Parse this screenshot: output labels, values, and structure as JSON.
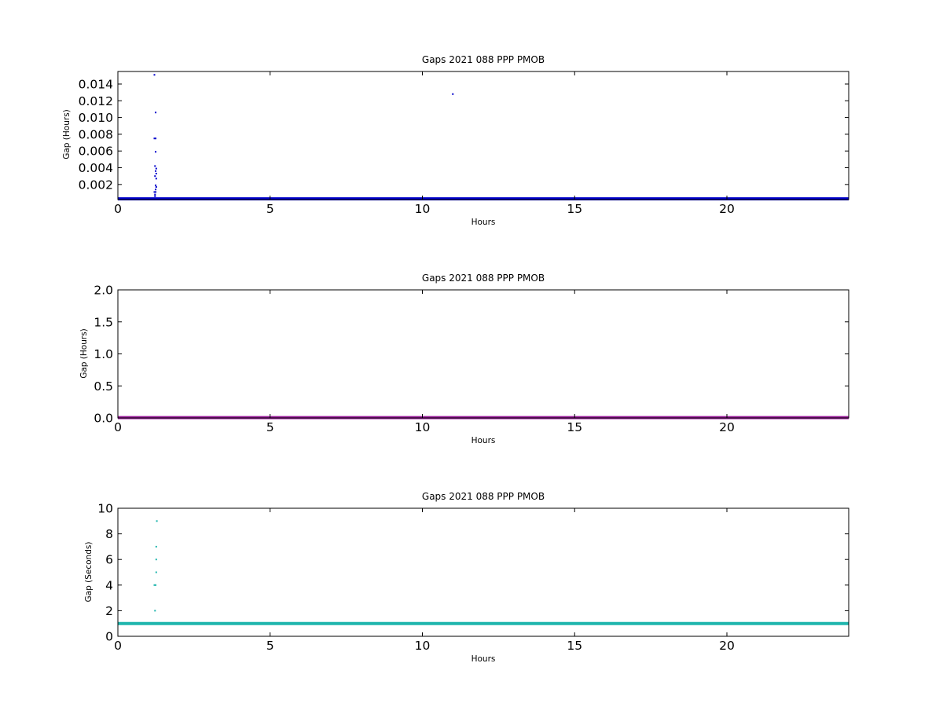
{
  "chart_data": [
    {
      "type": "scatter",
      "title": "Gaps 2021 088 PPP  PMOB",
      "xlabel": "Hours",
      "ylabel": "Gap (Hours)",
      "xlim": [
        0,
        24
      ],
      "ylim": [
        0.0002,
        0.0155
      ],
      "xticks": [
        0,
        5,
        10,
        15,
        20
      ],
      "xtick_labels": [
        "0",
        "5",
        "10",
        "15",
        "20"
      ],
      "yticks": [
        0.002,
        0.004,
        0.006,
        0.008,
        0.01,
        0.012,
        0.014
      ],
      "ytick_labels": [
        "0.002",
        "0.004",
        "0.006",
        "0.008",
        "0.010",
        "0.012",
        "0.014"
      ],
      "grid": false,
      "color": "#0000cc",
      "baseline": {
        "y": 0.000278,
        "x_start": 0,
        "x_end": 24
      },
      "points": [
        {
          "x": 1.2,
          "y": 0.0151
        },
        {
          "x": 1.24,
          "y": 0.0106
        },
        {
          "x": 1.2,
          "y": 0.0075
        },
        {
          "x": 1.24,
          "y": 0.0075
        },
        {
          "x": 1.24,
          "y": 0.0059
        },
        {
          "x": 1.22,
          "y": 0.0042
        },
        {
          "x": 1.26,
          "y": 0.0039
        },
        {
          "x": 1.24,
          "y": 0.0036
        },
        {
          "x": 1.26,
          "y": 0.0033
        },
        {
          "x": 1.22,
          "y": 0.003
        },
        {
          "x": 1.26,
          "y": 0.0027
        },
        {
          "x": 1.24,
          "y": 0.0019
        },
        {
          "x": 1.26,
          "y": 0.0017
        },
        {
          "x": 1.24,
          "y": 0.0014
        },
        {
          "x": 1.2,
          "y": 0.0011
        },
        {
          "x": 1.24,
          "y": 0.0011
        },
        {
          "x": 1.22,
          "y": 0.0008
        },
        {
          "x": 1.22,
          "y": 0.0006
        },
        {
          "x": 11.0,
          "y": 0.0128
        }
      ]
    },
    {
      "type": "scatter",
      "title": "Gaps 2021 088 PPP  PMOB",
      "xlabel": "Hours",
      "ylabel": "Gap (Hours)",
      "xlim": [
        0,
        24
      ],
      "ylim": [
        0,
        2
      ],
      "xticks": [
        0,
        5,
        10,
        15,
        20
      ],
      "xtick_labels": [
        "0",
        "5",
        "10",
        "15",
        "20"
      ],
      "yticks": [
        0.0,
        0.5,
        1.0,
        1.5,
        2.0
      ],
      "ytick_labels": [
        "0.0",
        "0.5",
        "1.0",
        "1.5",
        "2.0"
      ],
      "grid": false,
      "color": "#9b1d9b",
      "baseline": {
        "y": 0.005,
        "x_start": 0,
        "x_end": 24
      },
      "points": []
    },
    {
      "type": "scatter",
      "title": "Gaps 2021 088 PPP  PMOB",
      "xlabel": "Hours",
      "ylabel": "Gap (Seconds)",
      "xlim": [
        0,
        24
      ],
      "ylim": [
        0,
        10
      ],
      "xticks": [
        0,
        5,
        10,
        15,
        20
      ],
      "xtick_labels": [
        "0",
        "5",
        "10",
        "15",
        "20"
      ],
      "yticks": [
        0,
        2,
        4,
        6,
        8,
        10
      ],
      "ytick_labels": [
        "0",
        "2",
        "4",
        "6",
        "8",
        "10"
      ],
      "grid": false,
      "color": "#1fb5ad",
      "baseline": {
        "y": 1,
        "x_start": 0,
        "x_end": 24
      },
      "points": [
        {
          "x": 1.28,
          "y": 9
        },
        {
          "x": 1.26,
          "y": 7
        },
        {
          "x": 1.26,
          "y": 6
        },
        {
          "x": 1.26,
          "y": 5
        },
        {
          "x": 1.2,
          "y": 4
        },
        {
          "x": 1.24,
          "y": 4
        },
        {
          "x": 1.22,
          "y": 2
        }
      ]
    }
  ]
}
